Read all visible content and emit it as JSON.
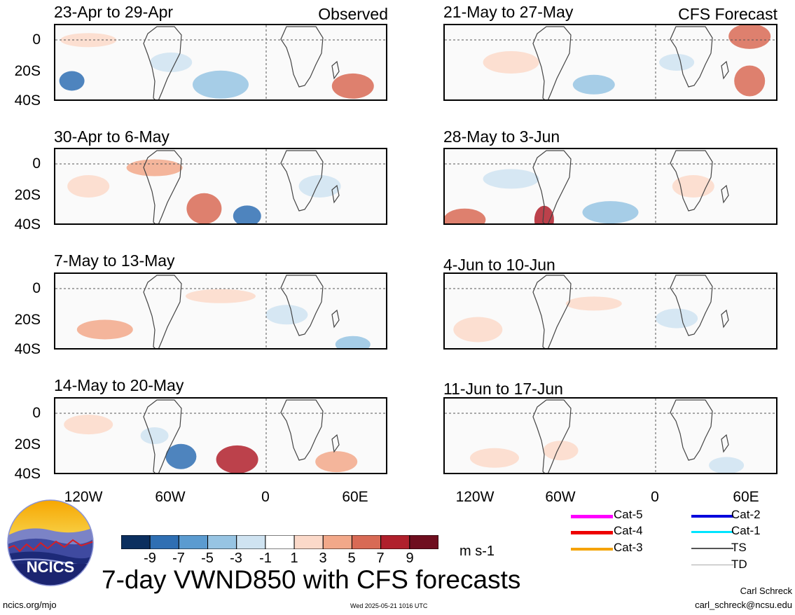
{
  "header": {
    "observed_label": "Observed",
    "forecast_label": "CFS Forecast"
  },
  "panels": [
    {
      "title": "23-Apr to 29-Apr",
      "column": "observed",
      "row": 0
    },
    {
      "title": "30-Apr to 6-May",
      "column": "observed",
      "row": 1
    },
    {
      "title": "7-May to 13-May",
      "column": "observed",
      "row": 2
    },
    {
      "title": "14-May to 20-May",
      "column": "observed",
      "row": 3
    },
    {
      "title": "21-May to 27-May",
      "column": "forecast",
      "row": 0
    },
    {
      "title": "28-May to 3-Jun",
      "column": "forecast",
      "row": 1
    },
    {
      "title": "4-Jun to 10-Jun",
      "column": "forecast",
      "row": 2
    },
    {
      "title": "11-Jun to 17-Jun",
      "column": "forecast",
      "row": 3
    }
  ],
  "axes": {
    "lat_labels": [
      "0",
      "20S",
      "40S"
    ],
    "lon_labels": [
      "120W",
      "60W",
      "0",
      "60E"
    ]
  },
  "colorbar": {
    "colors": [
      "#0b2f5f",
      "#2f6fb3",
      "#5b9bd0",
      "#97c4e3",
      "#cfe3f1",
      "#ffffff",
      "#fbd9c9",
      "#f2a889",
      "#d86a55",
      "#b0202c",
      "#6f0e1f"
    ],
    "tick_labels": [
      "-9",
      "-7",
      "-5",
      "-3",
      "-1",
      "1",
      "3",
      "5",
      "7",
      "9"
    ],
    "units": "m s-1"
  },
  "track_legend": [
    {
      "label": "Cat-5",
      "color": "#ff00ff"
    },
    {
      "label": "Cat-4",
      "color": "#ee0000"
    },
    {
      "label": "Cat-3",
      "color": "#f5a300"
    },
    {
      "label": "Cat-2",
      "color": "#0000dd"
    },
    {
      "label": "Cat-1",
      "color": "#00e5ff"
    },
    {
      "label": "TS",
      "color": "#555555"
    },
    {
      "label": "TD",
      "color": "#aaaaaa"
    }
  ],
  "logo": {
    "text": "NCICS"
  },
  "footer": {
    "title": "7-day VWND850 with CFS forecasts",
    "url": "ncics.org/mjo",
    "timestamp": "Wed 2025-05-21 1016 UTC",
    "author": "Carl Schreck",
    "email": "carl_schreck@ncsu.edu"
  }
}
